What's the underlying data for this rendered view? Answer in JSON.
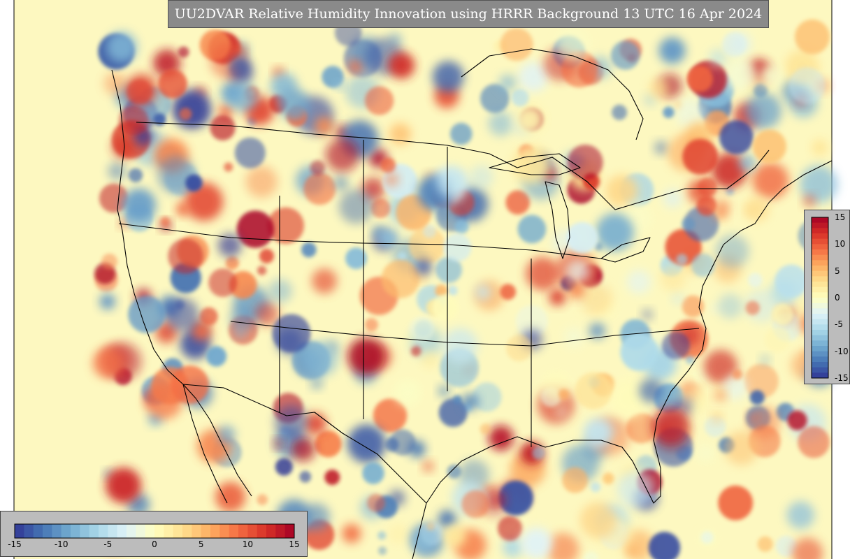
{
  "title": "UU2DVAR Relative Humidity Innovation using HRRR Background 13 UTC 16 Apr 2024",
  "colorbar": {
    "min": -15,
    "max": 15,
    "levels": 30,
    "colors_low_to_high": [
      "#313695",
      "#4575b4",
      "#74add1",
      "#abd9e9",
      "#e0f3f8",
      "#ffffbf",
      "#fee090",
      "#fdae61",
      "#f46d43",
      "#d73027",
      "#a50026"
    ],
    "bottom_ticks": [
      "-15",
      "-10",
      "-5",
      "0",
      "5",
      "10",
      "15"
    ],
    "right_ticks": [
      "15",
      "10",
      "5",
      "0",
      "-5",
      "-10",
      "-15"
    ]
  },
  "map": {
    "background_color": "#fdf8c0",
    "land_border_color": "#000000"
  }
}
